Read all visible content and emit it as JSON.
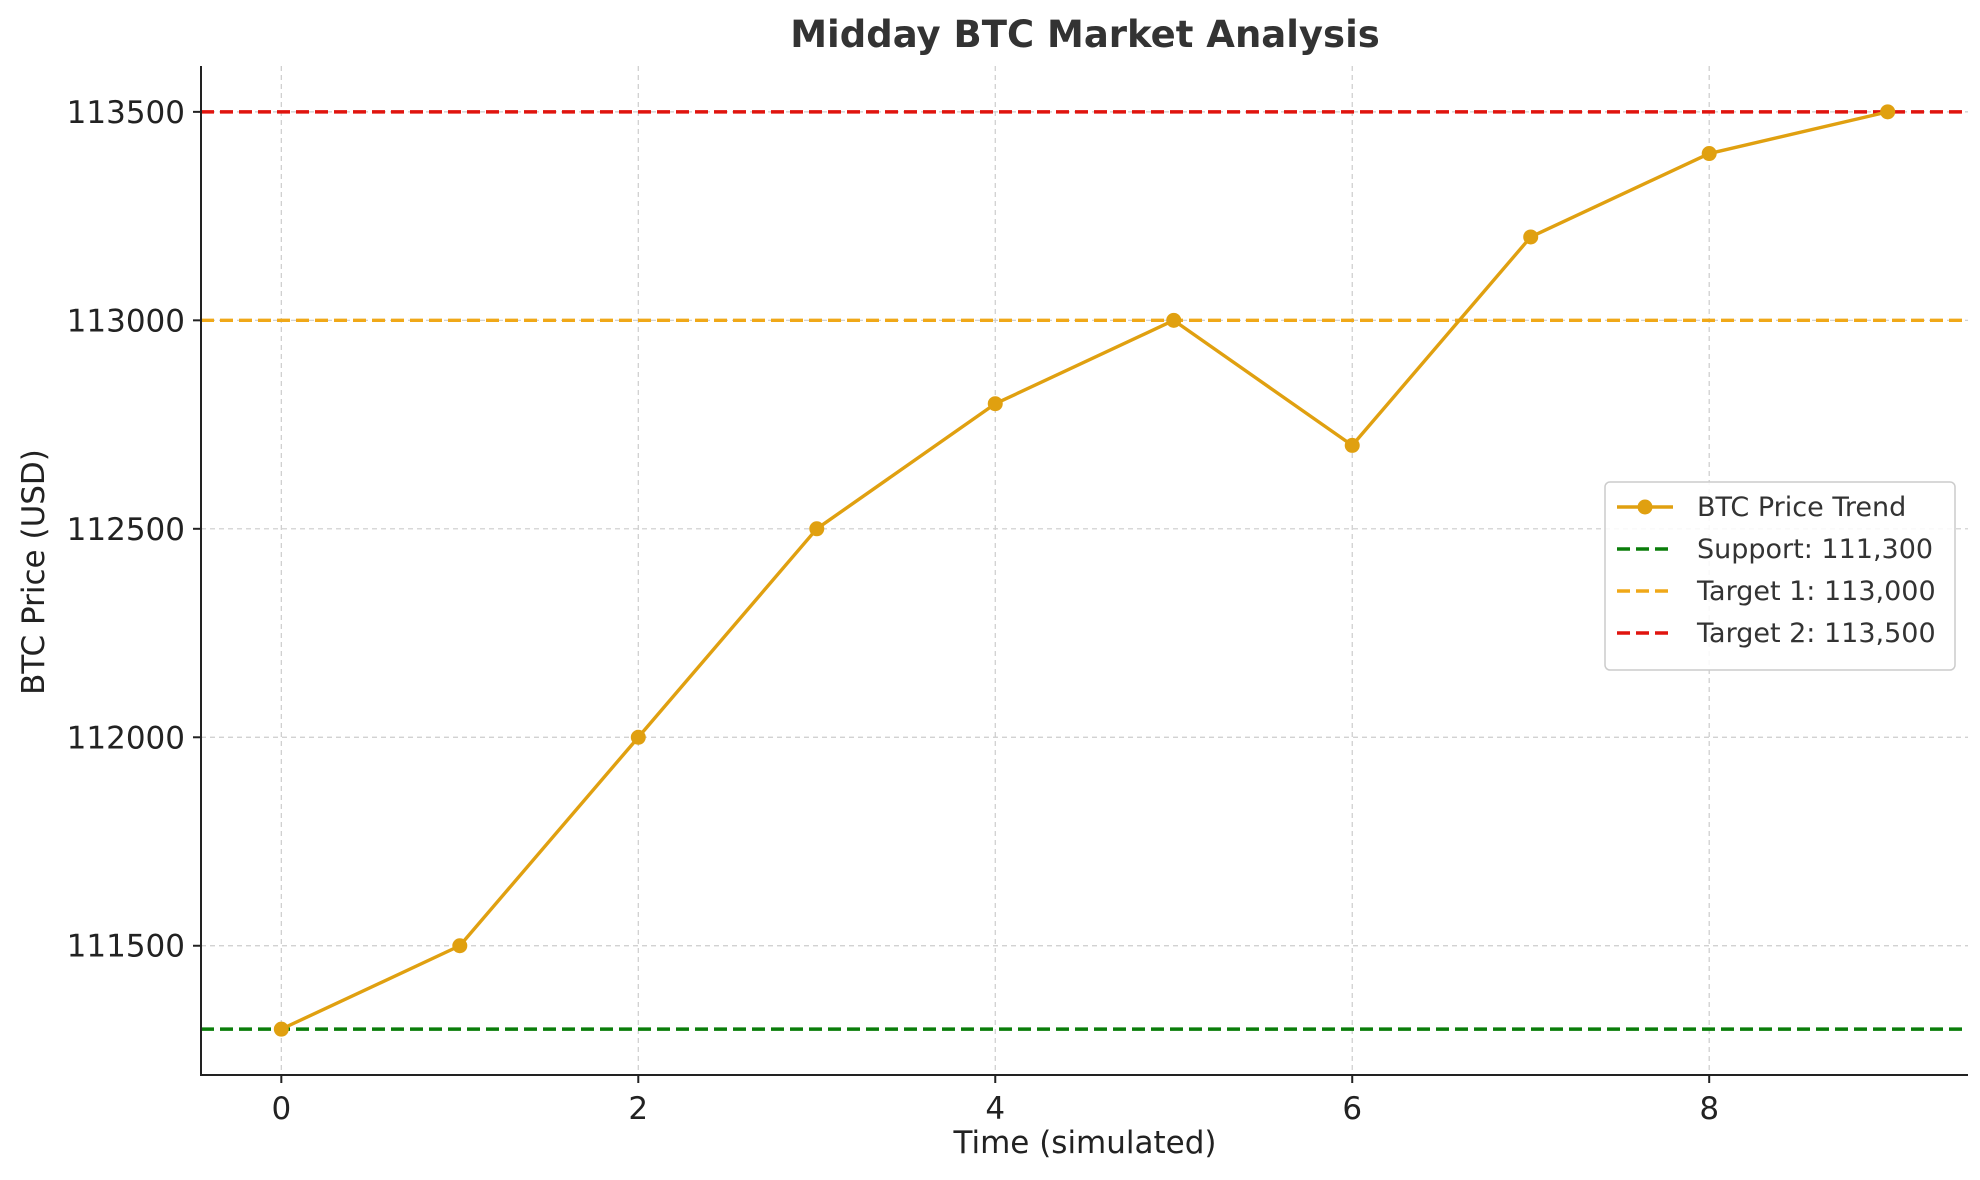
{
  "chart_data": {
    "type": "line",
    "title": "Midday BTC Market Analysis",
    "xlabel": "Time (simulated)",
    "ylabel": "BTC Price (USD)",
    "xlim": [
      -0.45,
      9.45
    ],
    "ylim": [
      111190,
      113610
    ],
    "x_ticks": [
      0,
      2,
      4,
      6,
      8
    ],
    "y_ticks": [
      111500,
      112000,
      112500,
      113000,
      113500
    ],
    "grid": true,
    "legend_position": "center-right",
    "series": [
      {
        "name": "BTC Price Trend",
        "color": "#e0a010",
        "marker": "circle",
        "x": [
          0,
          1,
          2,
          3,
          4,
          5,
          6,
          7,
          8,
          9
        ],
        "y": [
          111300,
          111500,
          112000,
          112500,
          112800,
          113000,
          112700,
          113200,
          113400,
          113500
        ]
      }
    ],
    "reference_lines": [
      {
        "name": "Support: 111,300",
        "y": 111300,
        "color": "#0a7d0a",
        "style": "dashed"
      },
      {
        "name": "Target 1: 113,000",
        "y": 113000,
        "color": "#f0a818",
        "style": "dashed"
      },
      {
        "name": "Target 2: 113,500",
        "y": 113500,
        "color": "#e0140e",
        "style": "dashed"
      }
    ]
  }
}
